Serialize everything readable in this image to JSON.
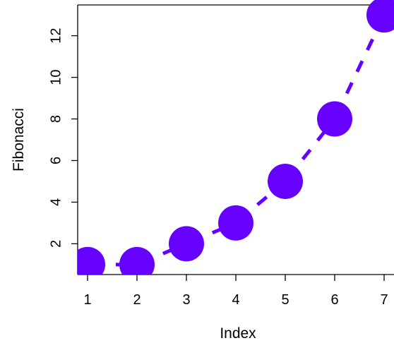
{
  "chart_data": {
    "type": "line",
    "xlabel": "Index",
    "ylabel": "Fibonacci",
    "x": [
      1,
      2,
      3,
      4,
      5,
      6,
      7
    ],
    "y": [
      1,
      1,
      2,
      3,
      5,
      8,
      13
    ],
    "xlim": [
      0.8,
      7.2
    ],
    "ylim": [
      0.52,
      13.48
    ],
    "xticks": [
      "1",
      "2",
      "3",
      "4",
      "5",
      "6",
      "7"
    ],
    "yticks": [
      "2",
      "4",
      "6",
      "8",
      "10",
      "12"
    ],
    "line_style": "dashed",
    "marker": "filled-circle",
    "color": "#6600ff",
    "grid": false
  }
}
